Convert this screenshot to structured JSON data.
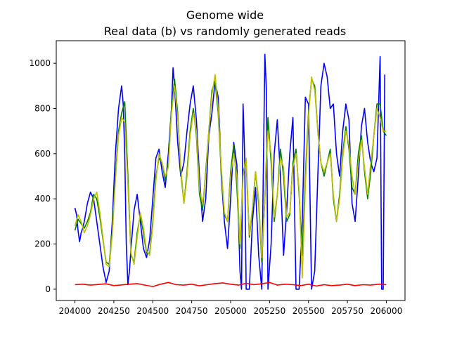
{
  "title_line1": "Genome wide",
  "title_line2": "Real data (b) vs randomly generated reads",
  "chart_data": {
    "type": "line",
    "title": "Genome wide\nReal data (b) vs randomly generated reads",
    "xlabel": "",
    "ylabel": "",
    "xlim": [
      203880,
      206120
    ],
    "ylim": [
      -50,
      1100
    ],
    "xticks": [
      204000,
      204250,
      204500,
      204750,
      205000,
      205250,
      205500,
      205750,
      206000
    ],
    "yticks": [
      0,
      200,
      400,
      600,
      800,
      1000
    ],
    "grid": false,
    "legend": "none",
    "series": [
      {
        "color": "#0000ff",
        "x": [
          204000,
          204010,
          204020,
          204030,
          204040,
          204050,
          204060,
          204080,
          204100,
          204120,
          204140,
          204160,
          204180,
          204200,
          204220,
          204240,
          204260,
          204280,
          204300,
          204310,
          204320,
          204330,
          204340,
          204350,
          204360,
          204380,
          204400,
          204420,
          204440,
          204460,
          204480,
          204500,
          204520,
          204540,
          204560,
          204580,
          204600,
          204620,
          204630,
          204640,
          204660,
          204680,
          204700,
          204720,
          204740,
          204760,
          204780,
          204800,
          204820,
          204840,
          204860,
          204880,
          204900,
          204920,
          204930,
          204940,
          204960,
          204980,
          205000,
          205020,
          205040,
          205060,
          205070,
          205080,
          205090,
          205100,
          205120,
          205140,
          205160,
          205180,
          205200,
          205220,
          205230,
          205240,
          205260,
          205280,
          205300,
          205320,
          205340,
          205360,
          205380,
          205400,
          205420,
          205440,
          205460,
          205480,
          205500,
          205520,
          205540,
          205560,
          205580,
          205600,
          205620,
          205640,
          205660,
          205680,
          205700,
          205720,
          205740,
          205760,
          205780,
          205800,
          205820,
          205840,
          205860,
          205880,
          205900,
          205920,
          205940,
          205960,
          205970,
          205980,
          205990
        ],
        "y": [
          360,
          330,
          260,
          210,
          250,
          270,
          300,
          380,
          430,
          400,
          300,
          200,
          100,
          30,
          80,
          300,
          600,
          800,
          900,
          820,
          600,
          200,
          20,
          80,
          180,
          350,
          420,
          300,
          180,
          140,
          220,
          400,
          580,
          620,
          520,
          450,
          600,
          800,
          980,
          900,
          650,
          500,
          560,
          700,
          820,
          900,
          750,
          500,
          300,
          400,
          680,
          780,
          920,
          850,
          700,
          500,
          300,
          180,
          400,
          650,
          550,
          80,
          0,
          820,
          600,
          0,
          0,
          300,
          450,
          150,
          0,
          1040,
          880,
          0,
          200,
          600,
          750,
          500,
          150,
          350,
          600,
          760,
          0,
          0,
          300,
          850,
          820,
          0,
          80,
          500,
          900,
          1000,
          940,
          800,
          820,
          600,
          500,
          700,
          820,
          750,
          380,
          300,
          500,
          720,
          800,
          650,
          560,
          520,
          580,
          1030,
          0,
          0,
          950
        ],
        "approx": true
      },
      {
        "color": "#008000",
        "x": [
          204000,
          204020,
          204040,
          204060,
          204080,
          204100,
          204120,
          204140,
          204160,
          204180,
          204200,
          204220,
          204240,
          204260,
          204280,
          204300,
          204320,
          204340,
          204360,
          204380,
          204400,
          204420,
          204440,
          204460,
          204480,
          204500,
          204520,
          204540,
          204560,
          204580,
          204600,
          204620,
          204640,
          204660,
          204680,
          204700,
          204720,
          204740,
          204760,
          204780,
          204800,
          204820,
          204840,
          204860,
          204880,
          204900,
          204920,
          204940,
          204960,
          204980,
          205000,
          205020,
          205040,
          205060,
          205080,
          205100,
          205120,
          205140,
          205160,
          205180,
          205200,
          205220,
          205240,
          205260,
          205280,
          205300,
          205320,
          205340,
          205360,
          205380,
          205400,
          205420,
          205440,
          205460,
          205480,
          205500,
          205520,
          205540,
          205560,
          205580,
          205600,
          205620,
          205640,
          205660,
          205680,
          205700,
          205720,
          205740,
          205760,
          205780,
          205800,
          205820,
          205840,
          205860,
          205880,
          205900,
          205920,
          205940,
          205960,
          205980,
          206000
        ],
        "y": [
          260,
          310,
          290,
          270,
          300,
          340,
          420,
          400,
          320,
          220,
          120,
          110,
          260,
          500,
          700,
          780,
          830,
          500,
          150,
          120,
          250,
          330,
          250,
          160,
          160,
          300,
          500,
          580,
          560,
          480,
          560,
          800,
          930,
          780,
          520,
          380,
          520,
          700,
          800,
          680,
          420,
          350,
          520,
          700,
          880,
          920,
          780,
          520,
          330,
          300,
          520,
          640,
          450,
          180,
          520,
          560,
          230,
          350,
          520,
          380,
          120,
          400,
          760,
          560,
          300,
          420,
          620,
          500,
          300,
          330,
          560,
          620,
          420,
          150,
          500,
          780,
          930,
          900,
          700,
          560,
          500,
          560,
          620,
          400,
          300,
          420,
          600,
          720,
          620,
          450,
          420,
          600,
          680,
          520,
          400,
          520,
          680,
          820,
          820,
          700,
          680
        ],
        "approx": true
      },
      {
        "color": "#bfbf00",
        "x": [
          204000,
          204020,
          204040,
          204060,
          204080,
          204100,
          204120,
          204140,
          204160,
          204180,
          204200,
          204220,
          204240,
          204260,
          204280,
          204300,
          204320,
          204340,
          204360,
          204380,
          204400,
          204420,
          204440,
          204460,
          204480,
          204500,
          204520,
          204540,
          204560,
          204580,
          204600,
          204620,
          204640,
          204660,
          204680,
          204700,
          204720,
          204740,
          204760,
          204780,
          204800,
          204820,
          204840,
          204860,
          204880,
          204900,
          204920,
          204940,
          204960,
          204980,
          205000,
          205020,
          205040,
          205060,
          205080,
          205100,
          205120,
          205140,
          205160,
          205180,
          205200,
          205220,
          205240,
          205260,
          205280,
          205300,
          205320,
          205340,
          205360,
          205380,
          205400,
          205420,
          205440,
          205460,
          205480,
          205500,
          205520,
          205540,
          205560,
          205580,
          205600,
          205620,
          205640,
          205660,
          205680,
          205700,
          205720,
          205740,
          205760,
          205780,
          205800,
          205820,
          205840,
          205860,
          205880,
          205900,
          205920,
          205940,
          205960,
          205980,
          206000
        ],
        "y": [
          280,
          330,
          300,
          250,
          280,
          330,
          400,
          430,
          340,
          230,
          110,
          100,
          240,
          480,
          680,
          760,
          740,
          460,
          160,
          110,
          230,
          340,
          270,
          170,
          150,
          280,
          480,
          600,
          560,
          500,
          540,
          780,
          900,
          760,
          540,
          380,
          500,
          680,
          780,
          700,
          440,
          380,
          500,
          700,
          860,
          950,
          800,
          540,
          340,
          300,
          500,
          600,
          500,
          200,
          500,
          580,
          240,
          360,
          520,
          400,
          140,
          400,
          700,
          600,
          320,
          420,
          580,
          540,
          320,
          340,
          540,
          600,
          440,
          50,
          460,
          760,
          940,
          880,
          700,
          560,
          520,
          560,
          600,
          420,
          300,
          400,
          580,
          700,
          640,
          500,
          420,
          560,
          660,
          540,
          420,
          560,
          680,
          800,
          760,
          700,
          700
        ],
        "approx": true
      },
      {
        "color": "#ff0000",
        "x": [
          204000,
          204050,
          204100,
          204150,
          204200,
          204250,
          204300,
          204350,
          204400,
          204450,
          204500,
          204550,
          204600,
          204650,
          204700,
          204750,
          204800,
          204850,
          204900,
          204950,
          205000,
          205050,
          205100,
          205150,
          205200,
          205250,
          205300,
          205350,
          205400,
          205450,
          205500,
          205550,
          205600,
          205650,
          205700,
          205750,
          205800,
          205850,
          205900,
          205950,
          206000
        ],
        "y": [
          20,
          22,
          18,
          21,
          24,
          16,
          19,
          22,
          25,
          18,
          12,
          22,
          30,
          20,
          18,
          22,
          15,
          20,
          25,
          28,
          22,
          18,
          26,
          20,
          24,
          30,
          18,
          22,
          20,
          16,
          22,
          14,
          20,
          16,
          18,
          22,
          16,
          20,
          18,
          22,
          20
        ],
        "approx": true
      }
    ]
  }
}
